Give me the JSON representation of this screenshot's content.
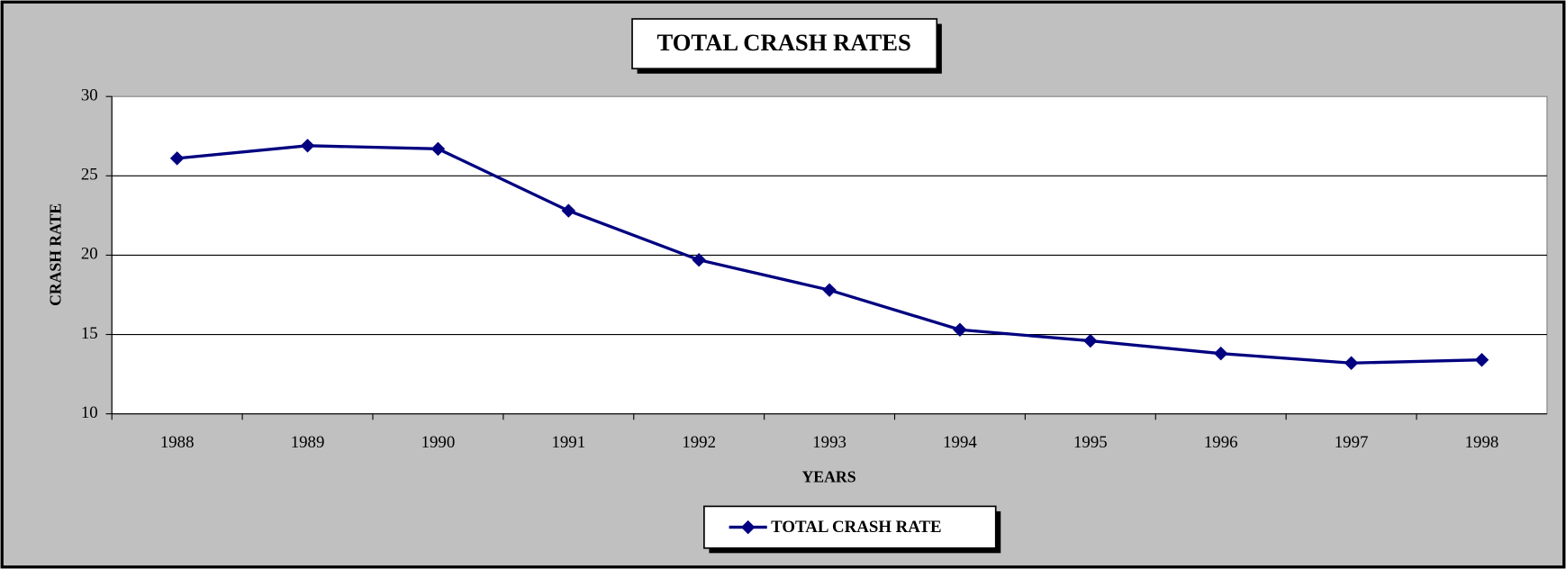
{
  "chart_data": {
    "type": "line",
    "title": "TOTAL CRASH RATES",
    "x_label": "YEARS",
    "y_label": "CRASH RATE",
    "categories": [
      "1988",
      "1989",
      "1990",
      "1991",
      "1992",
      "1993",
      "1994",
      "1995",
      "1996",
      "1997",
      "1998"
    ],
    "series": [
      {
        "name": "TOTAL CRASH RATE",
        "color": "#000080",
        "values": [
          26.1,
          26.9,
          26.7,
          22.8,
          19.7,
          17.8,
          15.3,
          14.6,
          13.8,
          13.2,
          13.4
        ]
      }
    ],
    "ylim": [
      10,
      30
    ],
    "yticks": [
      10,
      15,
      20,
      25,
      30
    ],
    "grid": true,
    "legend": "bottom"
  }
}
